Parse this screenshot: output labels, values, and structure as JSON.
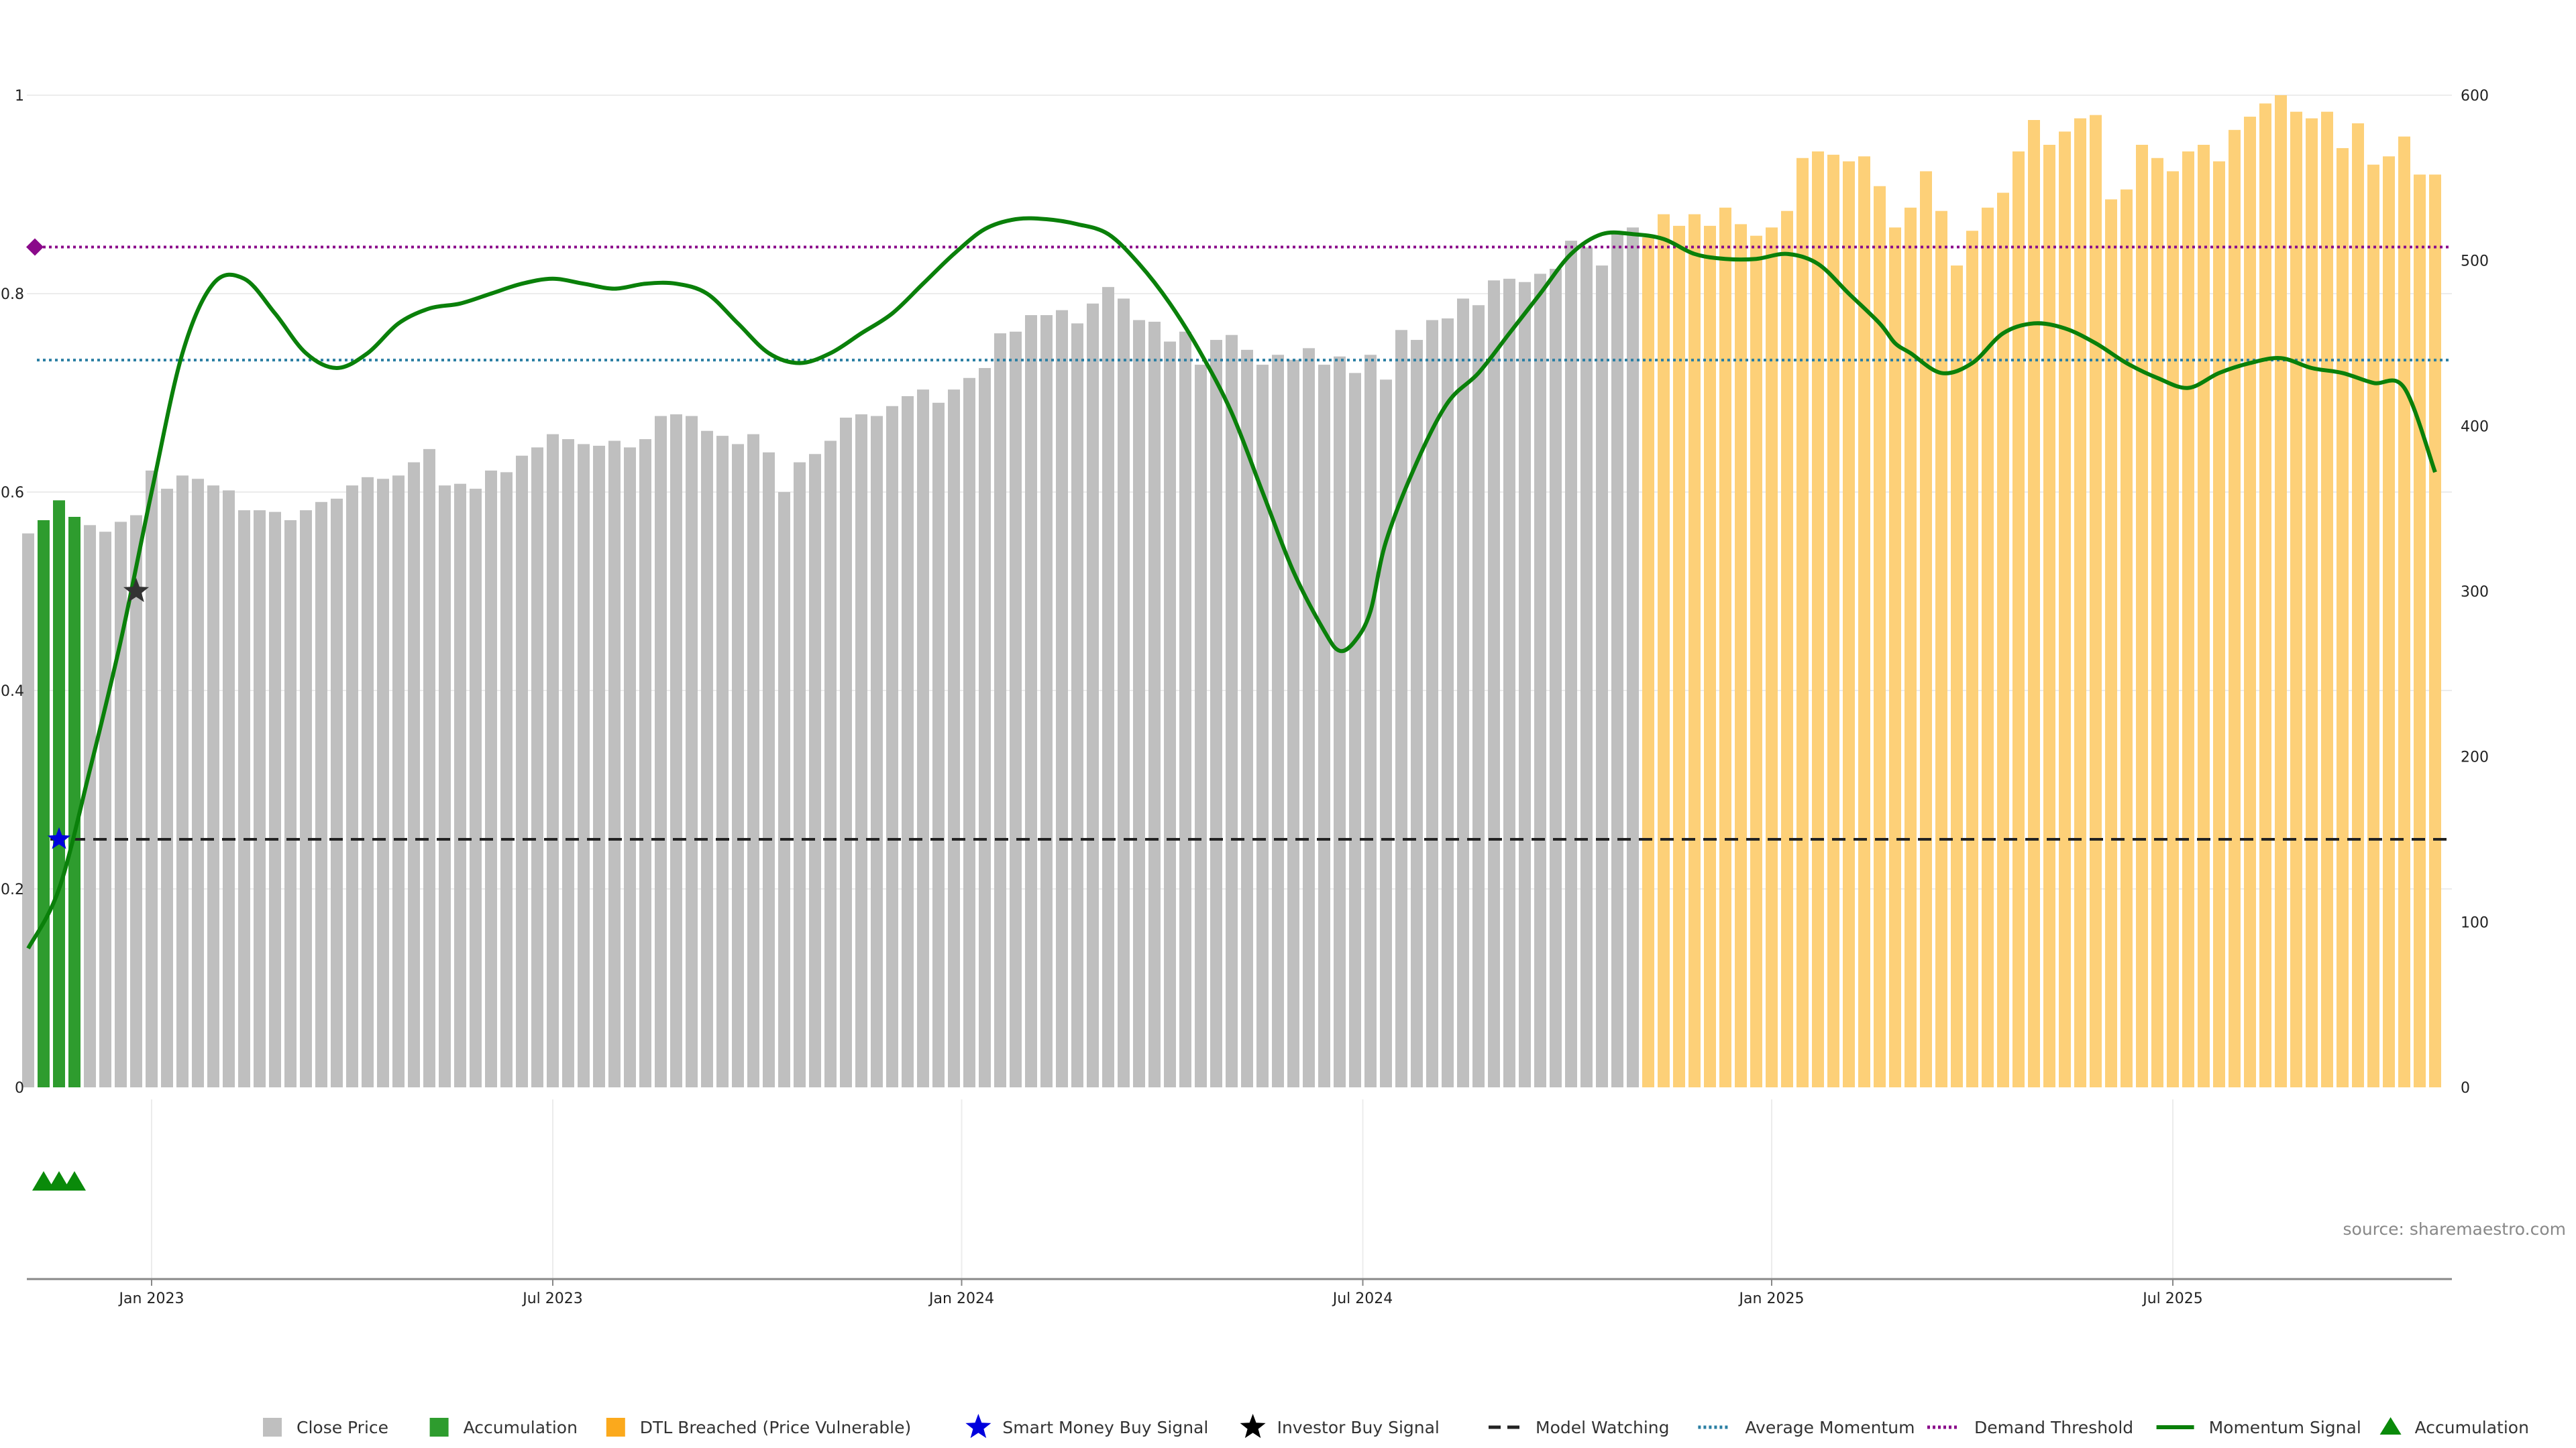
{
  "chart_data": {
    "type": "bar",
    "weeks": 160,
    "ylim_right": [
      0,
      600
    ],
    "ylim_left": [
      0,
      1
    ],
    "left_ticks": [
      "0",
      "0.2",
      "0.4",
      "0.6",
      "0.8",
      "1"
    ],
    "right_ticks": [
      "0",
      "100",
      "200",
      "300",
      "400",
      "500",
      "600"
    ],
    "x_ticks": [
      {
        "label": "Jan 2023",
        "index": 8
      },
      {
        "label": "Jul 2023",
        "index": 34
      },
      {
        "label": "Jan 2024",
        "index": 60.5
      },
      {
        "label": "Jul 2024",
        "index": 86.5
      },
      {
        "label": "Jan 2025",
        "index": 113
      },
      {
        "label": "Jul 2025",
        "index": 139
      }
    ],
    "close_price_anchors": [
      [
        0,
        335
      ],
      [
        1,
        343
      ],
      [
        2,
        355
      ],
      [
        3,
        345
      ],
      [
        4,
        340
      ],
      [
        5,
        336
      ],
      [
        6,
        342
      ],
      [
        7,
        346
      ],
      [
        8,
        373
      ],
      [
        9,
        362
      ],
      [
        10,
        370
      ],
      [
        11,
        368
      ],
      [
        12,
        364
      ],
      [
        13,
        361
      ],
      [
        14,
        349
      ],
      [
        15,
        349
      ],
      [
        16,
        348
      ],
      [
        17,
        343
      ],
      [
        18,
        349
      ],
      [
        19,
        354
      ],
      [
        20,
        356
      ],
      [
        21,
        364
      ],
      [
        22,
        369
      ],
      [
        23,
        368
      ],
      [
        24,
        370
      ],
      [
        25,
        378
      ],
      [
        26,
        386
      ],
      [
        27,
        364
      ],
      [
        28,
        365
      ],
      [
        29,
        362
      ],
      [
        30,
        373
      ],
      [
        31,
        372
      ],
      [
        32,
        382
      ],
      [
        33,
        387
      ],
      [
        34,
        395
      ],
      [
        35,
        392
      ],
      [
        36,
        389
      ],
      [
        37,
        388
      ],
      [
        38,
        391
      ],
      [
        39,
        387
      ],
      [
        40,
        392
      ],
      [
        41,
        406
      ],
      [
        42,
        407
      ],
      [
        43,
        406
      ],
      [
        44,
        397
      ],
      [
        45,
        394
      ],
      [
        46,
        389
      ],
      [
        47,
        395
      ],
      [
        48,
        384
      ],
      [
        49,
        360
      ],
      [
        50,
        378
      ],
      [
        51,
        383
      ],
      [
        52,
        391
      ],
      [
        53,
        405
      ],
      [
        54,
        407
      ],
      [
        55,
        406
      ],
      [
        56,
        412
      ],
      [
        57,
        418
      ],
      [
        58,
        422
      ],
      [
        59,
        414
      ],
      [
        60,
        422
      ],
      [
        61,
        429
      ],
      [
        62,
        435
      ],
      [
        63,
        456
      ],
      [
        64,
        457
      ],
      [
        65,
        467
      ],
      [
        66,
        467
      ],
      [
        67,
        470
      ],
      [
        68,
        462
      ],
      [
        69,
        474
      ],
      [
        70,
        484
      ],
      [
        71,
        477
      ],
      [
        72,
        464
      ],
      [
        73,
        463
      ],
      [
        74,
        451
      ],
      [
        75,
        457
      ],
      [
        76,
        437
      ],
      [
        77,
        452
      ],
      [
        78,
        455
      ],
      [
        79,
        446
      ],
      [
        80,
        437
      ],
      [
        81,
        443
      ],
      [
        82,
        440
      ],
      [
        83,
        447
      ],
      [
        84,
        437
      ],
      [
        85,
        442
      ],
      [
        86,
        432
      ],
      [
        87,
        443
      ],
      [
        88,
        428
      ],
      [
        89,
        458
      ],
      [
        90,
        452
      ],
      [
        91,
        464
      ],
      [
        92,
        465
      ],
      [
        93,
        477
      ],
      [
        94,
        473
      ],
      [
        95,
        488
      ],
      [
        96,
        489
      ],
      [
        97,
        487
      ],
      [
        98,
        492
      ],
      [
        99,
        495
      ],
      [
        100,
        512
      ],
      [
        101,
        508
      ],
      [
        102,
        497
      ],
      [
        103,
        516
      ],
      [
        104,
        520
      ],
      [
        105,
        514
      ],
      [
        106,
        528
      ],
      [
        107,
        521
      ],
      [
        108,
        528
      ],
      [
        109,
        521
      ],
      [
        110,
        532
      ],
      [
        111,
        522
      ],
      [
        112,
        515
      ],
      [
        113,
        520
      ],
      [
        114,
        530
      ],
      [
        115,
        562
      ],
      [
        116,
        566
      ],
      [
        117,
        564
      ],
      [
        118,
        560
      ],
      [
        119,
        563
      ],
      [
        120,
        545
      ],
      [
        121,
        520
      ],
      [
        122,
        532
      ],
      [
        123,
        554
      ],
      [
        124,
        530
      ],
      [
        125,
        497
      ],
      [
        126,
        518
      ],
      [
        127,
        532
      ],
      [
        128,
        541
      ],
      [
        129,
        566
      ],
      [
        130,
        585
      ],
      [
        131,
        570
      ],
      [
        132,
        578
      ],
      [
        133,
        586
      ],
      [
        134,
        588
      ],
      [
        135,
        537
      ],
      [
        136,
        543
      ],
      [
        137,
        570
      ],
      [
        138,
        562
      ],
      [
        139,
        554
      ],
      [
        140,
        566
      ],
      [
        141,
        570
      ],
      [
        142,
        560
      ],
      [
        143,
        579
      ],
      [
        144,
        587
      ],
      [
        145,
        595
      ],
      [
        146,
        600
      ],
      [
        147,
        590
      ],
      [
        148,
        586
      ],
      [
        149,
        590
      ],
      [
        150,
        568
      ],
      [
        151,
        583
      ],
      [
        152,
        558
      ],
      [
        153,
        563
      ],
      [
        154,
        575
      ],
      [
        155,
        552
      ],
      [
        156,
        552
      ]
    ],
    "accumulation_weeks": [
      1,
      2,
      3
    ],
    "dtl_breached_ranges": [
      [
        105,
        111
      ],
      [
        112,
        122
      ],
      [
        123,
        126
      ],
      [
        127,
        156
      ]
    ],
    "momentum_anchors": [
      [
        0,
        0.14
      ],
      [
        2,
        0.2
      ],
      [
        4,
        0.32
      ],
      [
        6,
        0.45
      ],
      [
        8,
        0.6
      ],
      [
        10,
        0.74
      ],
      [
        12,
        0.81
      ],
      [
        14,
        0.815
      ],
      [
        16,
        0.78
      ],
      [
        18,
        0.74
      ],
      [
        20,
        0.725
      ],
      [
        22,
        0.74
      ],
      [
        24,
        0.77
      ],
      [
        26,
        0.785
      ],
      [
        28,
        0.79
      ],
      [
        30,
        0.8
      ],
      [
        32,
        0.81
      ],
      [
        34,
        0.815
      ],
      [
        36,
        0.81
      ],
      [
        38,
        0.805
      ],
      [
        40,
        0.81
      ],
      [
        42,
        0.81
      ],
      [
        44,
        0.8
      ],
      [
        46,
        0.77
      ],
      [
        48,
        0.74
      ],
      [
        50,
        0.73
      ],
      [
        52,
        0.74
      ],
      [
        54,
        0.76
      ],
      [
        56,
        0.78
      ],
      [
        58,
        0.81
      ],
      [
        60,
        0.84
      ],
      [
        62,
        0.865
      ],
      [
        64,
        0.875
      ],
      [
        66,
        0.875
      ],
      [
        68,
        0.87
      ],
      [
        70,
        0.86
      ],
      [
        72,
        0.83
      ],
      [
        74,
        0.79
      ],
      [
        76,
        0.74
      ],
      [
        78,
        0.68
      ],
      [
        80,
        0.6
      ],
      [
        82,
        0.52
      ],
      [
        84,
        0.46
      ],
      [
        85,
        0.44
      ],
      [
        86,
        0.45
      ],
      [
        87,
        0.48
      ],
      [
        88,
        0.55
      ],
      [
        90,
        0.63
      ],
      [
        92,
        0.69
      ],
      [
        94,
        0.72
      ],
      [
        96,
        0.76
      ],
      [
        98,
        0.8
      ],
      [
        100,
        0.84
      ],
      [
        102,
        0.86
      ],
      [
        104,
        0.86
      ],
      [
        106,
        0.855
      ],
      [
        108,
        0.84
      ],
      [
        110,
        0.835
      ],
      [
        112,
        0.835
      ],
      [
        114,
        0.84
      ],
      [
        116,
        0.83
      ],
      [
        118,
        0.8
      ],
      [
        120,
        0.77
      ],
      [
        121,
        0.75
      ],
      [
        122,
        0.74
      ],
      [
        124,
        0.72
      ],
      [
        126,
        0.73
      ],
      [
        128,
        0.76
      ],
      [
        130,
        0.77
      ],
      [
        132,
        0.765
      ],
      [
        134,
        0.75
      ],
      [
        136,
        0.73
      ],
      [
        138,
        0.715
      ],
      [
        140,
        0.705
      ],
      [
        142,
        0.72
      ],
      [
        144,
        0.73
      ],
      [
        146,
        0.735
      ],
      [
        148,
        0.725
      ],
      [
        150,
        0.72
      ],
      [
        152,
        0.71
      ],
      [
        154,
        0.705
      ],
      [
        156,
        0.62
      ]
    ],
    "reference_lines": {
      "demand_threshold": 0.847,
      "average_momentum": 0.733,
      "model_watching": 0.25
    },
    "markers": {
      "smart_money_buy": {
        "index": 2,
        "value": 0.25
      },
      "investor_buy": {
        "index": 7,
        "value": 0.5
      },
      "demand_diamond": {
        "index": 0,
        "value": 0.847
      }
    },
    "accumulation_triangle_weeks": [
      1,
      2,
      3
    ],
    "colors": {
      "close_price": "#bfbfbf",
      "accumulation": "#2e9c2e",
      "dtl_breached": "#fdd078",
      "smart_money": "#0000dd",
      "investor_buy": "#333333",
      "model_watching": "#222222",
      "average_momentum": "#2b7fa3",
      "demand_threshold": "#8a0a8a",
      "momentum": "#0a800a",
      "momentum_late": "#5aa02a",
      "accumulation_triangle": "#0a8a0a"
    },
    "legend": [
      {
        "label": "Close Price",
        "key": "close_square"
      },
      {
        "label": "Accumulation",
        "key": "accum_square"
      },
      {
        "label": "DTL Breached (Price Vulnerable)",
        "key": "dtl_square"
      },
      {
        "label": "Smart Money Buy Signal",
        "key": "blue_star"
      },
      {
        "label": "Investor Buy Signal",
        "key": "black_star"
      },
      {
        "label": "Model Watching",
        "key": "dash_line"
      },
      {
        "label": "Average Momentum",
        "key": "dot_teal"
      },
      {
        "label": "Demand Threshold",
        "key": "dot_purple"
      },
      {
        "label": "Momentum Signal",
        "key": "green_line"
      },
      {
        "label": "Accumulation",
        "key": "green_triangle"
      }
    ]
  },
  "source_text": "source: sharemaestro.com"
}
